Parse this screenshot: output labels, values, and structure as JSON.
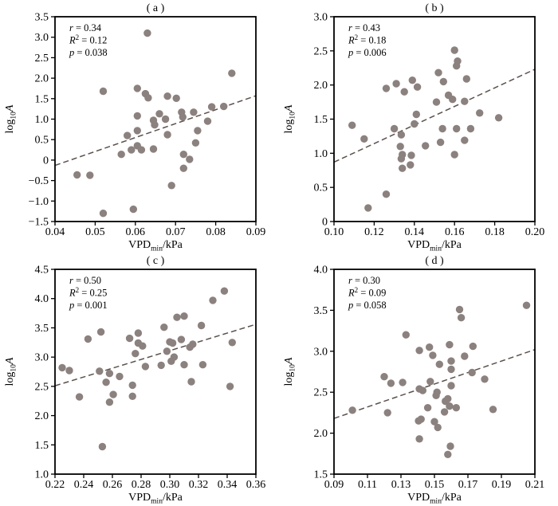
{
  "figure": {
    "background": "#ffffff",
    "point_color": "#8b817f",
    "trend_color": "#5b514d",
    "axis_color": "#000000",
    "text_color": "#000000"
  },
  "chart_data": [
    {
      "type": "scatter",
      "panel": "a",
      "title": "( a )",
      "xlabel": {
        "prefix": "VPD",
        "sub": "min",
        "suffix": "/kPa"
      },
      "ylabel": {
        "prefix": "log",
        "sub": "10",
        "suffix": "A"
      },
      "stats": [
        {
          "sym": "r",
          "sup": "",
          "val": "0.34"
        },
        {
          "sym": "R",
          "sup": "2",
          "val": "0.12"
        },
        {
          "sym": "p",
          "sup": "",
          "val": "0.038"
        }
      ],
      "xlim": [
        0.04,
        0.09
      ],
      "ylim": [
        -1.5,
        3.5
      ],
      "xticks": {
        "values": [
          0.04,
          0.05,
          0.06,
          0.07,
          0.08,
          0.09
        ],
        "labels": [
          "0.04",
          "0.05",
          "0.06",
          "0.07",
          "0.08",
          "0.09"
        ]
      },
      "yticks": {
        "values": [
          3.5,
          3.0,
          2.5,
          2.0,
          1.5,
          1.0,
          0.5,
          0,
          -0.5,
          -1.0,
          -1.5
        ],
        "labels": [
          "3.5",
          "3.0",
          "2.5",
          "2.0",
          "1.5",
          "1.0",
          "0.5",
          "0",
          "−0.5",
          "−1.0",
          "−1.5"
        ]
      },
      "trend": {
        "x1": 0.04,
        "y1": -0.13,
        "x2": 0.09,
        "y2": 1.57
      },
      "points": [
        [
          0.063,
          3.1
        ],
        [
          0.084,
          2.12
        ],
        [
          0.052,
          1.68
        ],
        [
          0.0605,
          1.75
        ],
        [
          0.0625,
          1.62
        ],
        [
          0.0632,
          1.52
        ],
        [
          0.068,
          1.56
        ],
        [
          0.0702,
          1.51
        ],
        [
          0.079,
          1.3
        ],
        [
          0.082,
          1.31
        ],
        [
          0.0715,
          1.17
        ],
        [
          0.0745,
          1.17
        ],
        [
          0.066,
          1.13
        ],
        [
          0.0605,
          1.08
        ],
        [
          0.0675,
          1.0
        ],
        [
          0.0645,
          0.97
        ],
        [
          0.0718,
          1.05
        ],
        [
          0.078,
          0.95
        ],
        [
          0.0648,
          0.86
        ],
        [
          0.068,
          0.62
        ],
        [
          0.0755,
          0.72
        ],
        [
          0.0605,
          0.72
        ],
        [
          0.058,
          0.6
        ],
        [
          0.075,
          0.42
        ],
        [
          0.0605,
          0.35
        ],
        [
          0.0645,
          0.27
        ],
        [
          0.059,
          0.25
        ],
        [
          0.0615,
          0.25
        ],
        [
          0.0565,
          0.14
        ],
        [
          0.072,
          0.14
        ],
        [
          0.0735,
          0.02
        ],
        [
          0.072,
          -0.2
        ],
        [
          0.0455,
          -0.36
        ],
        [
          0.0487,
          -0.37
        ],
        [
          0.069,
          -0.62
        ],
        [
          0.0595,
          -1.2
        ],
        [
          0.052,
          -1.3
        ]
      ]
    },
    {
      "type": "scatter",
      "panel": "b",
      "title": "( b )",
      "xlabel": {
        "prefix": "VPD",
        "sub": "min",
        "suffix": "/kPa"
      },
      "ylabel": {
        "prefix": "log",
        "sub": "10",
        "suffix": "A"
      },
      "stats": [
        {
          "sym": "r",
          "sup": "",
          "val": "0.43"
        },
        {
          "sym": "R",
          "sup": "2",
          "val": "0.18"
        },
        {
          "sym": "p",
          "sup": "",
          "val": "0.006"
        }
      ],
      "xlim": [
        0.1,
        0.2
      ],
      "ylim": [
        0,
        3.0
      ],
      "xticks": {
        "values": [
          0.1,
          0.12,
          0.14,
          0.16,
          0.18,
          0.2
        ],
        "labels": [
          "0.10",
          "0.12",
          "0.14",
          "0.16",
          "0.18",
          "0.20"
        ]
      },
      "yticks": {
        "values": [
          3.0,
          2.5,
          2.0,
          1.5,
          1.0,
          0.5,
          0
        ],
        "labels": [
          "3.0",
          "2.5",
          "2.0",
          "1.5",
          "1.0",
          "0.5",
          "0"
        ]
      },
      "trend": {
        "x1": 0.1,
        "y1": 0.87,
        "x2": 0.2,
        "y2": 2.23
      },
      "points": [
        [
          0.16,
          2.51
        ],
        [
          0.1615,
          2.35
        ],
        [
          0.161,
          2.28
        ],
        [
          0.152,
          2.18
        ],
        [
          0.166,
          2.09
        ],
        [
          0.1545,
          2.05
        ],
        [
          0.139,
          2.07
        ],
        [
          0.131,
          2.02
        ],
        [
          0.126,
          1.95
        ],
        [
          0.1415,
          1.97
        ],
        [
          0.135,
          1.9
        ],
        [
          0.157,
          1.85
        ],
        [
          0.159,
          1.79
        ],
        [
          0.165,
          1.76
        ],
        [
          0.151,
          1.75
        ],
        [
          0.1725,
          1.59
        ],
        [
          0.141,
          1.57
        ],
        [
          0.182,
          1.52
        ],
        [
          0.14,
          1.43
        ],
        [
          0.109,
          1.41
        ],
        [
          0.13,
          1.36
        ],
        [
          0.154,
          1.36
        ],
        [
          0.161,
          1.36
        ],
        [
          0.168,
          1.36
        ],
        [
          0.1335,
          1.27
        ],
        [
          0.115,
          1.21
        ],
        [
          0.165,
          1.19
        ],
        [
          0.153,
          1.16
        ],
        [
          0.1455,
          1.11
        ],
        [
          0.133,
          1.1
        ],
        [
          0.134,
          0.98
        ],
        [
          0.1385,
          0.97
        ],
        [
          0.16,
          0.98
        ],
        [
          0.1335,
          0.92
        ],
        [
          0.138,
          0.83
        ],
        [
          0.134,
          0.78
        ],
        [
          0.126,
          0.4
        ],
        [
          0.117,
          0.2
        ]
      ]
    },
    {
      "type": "scatter",
      "panel": "c",
      "title": "( c )",
      "xlabel": {
        "prefix": "VPD",
        "sub": "min",
        "suffix": "/kPa"
      },
      "ylabel": {
        "prefix": "log",
        "sub": "10",
        "suffix": "A"
      },
      "stats": [
        {
          "sym": "r",
          "sup": "",
          "val": "0.50"
        },
        {
          "sym": "R",
          "sup": "2",
          "val": "0.25"
        },
        {
          "sym": "p",
          "sup": "",
          "val": "0.001"
        }
      ],
      "xlim": [
        0.22,
        0.36
      ],
      "ylim": [
        1.0,
        4.5
      ],
      "xticks": {
        "values": [
          0.22,
          0.24,
          0.26,
          0.28,
          0.3,
          0.32,
          0.34,
          0.36
        ],
        "labels": [
          "0.22",
          "0.24",
          "0.26",
          "0.28",
          "0.30",
          "0.32",
          "0.34",
          "0.36"
        ]
      },
      "yticks": {
        "values": [
          4.5,
          4.0,
          3.5,
          3.0,
          2.5,
          2.0,
          1.5,
          1.0
        ],
        "labels": [
          "4.5",
          "4.0",
          "3.5",
          "3.0",
          "2.5",
          "2.0",
          "1.5",
          "1.0"
        ]
      },
      "trend": {
        "x1": 0.22,
        "y1": 2.51,
        "x2": 0.36,
        "y2": 3.56
      },
      "points": [
        [
          0.225,
          2.82
        ],
        [
          0.23,
          2.77
        ],
        [
          0.237,
          2.32
        ],
        [
          0.243,
          3.31
        ],
        [
          0.252,
          3.43
        ],
        [
          0.251,
          2.76
        ],
        [
          0.258,
          2.72
        ],
        [
          0.253,
          1.47
        ],
        [
          0.2556,
          2.57
        ],
        [
          0.258,
          2.23
        ],
        [
          0.265,
          2.67
        ],
        [
          0.2606,
          2.36
        ],
        [
          0.274,
          2.52
        ],
        [
          0.272,
          3.32
        ],
        [
          0.276,
          3.06
        ],
        [
          0.278,
          3.41
        ],
        [
          0.278,
          3.24
        ],
        [
          0.274,
          2.33
        ],
        [
          0.281,
          3.19
        ],
        [
          0.283,
          2.84
        ],
        [
          0.294,
          2.86
        ],
        [
          0.296,
          3.51
        ],
        [
          0.298,
          3.1
        ],
        [
          0.3,
          3.26
        ],
        [
          0.302,
          3.24
        ],
        [
          0.301,
          2.93
        ],
        [
          0.303,
          3.0
        ],
        [
          0.305,
          3.68
        ],
        [
          0.308,
          3.3
        ],
        [
          0.31,
          3.7
        ],
        [
          0.31,
          2.87
        ],
        [
          0.314,
          3.17
        ],
        [
          0.315,
          2.58
        ],
        [
          0.316,
          3.22
        ],
        [
          0.322,
          3.54
        ],
        [
          0.323,
          2.87
        ],
        [
          0.33,
          3.97
        ],
        [
          0.338,
          4.13
        ],
        [
          0.3435,
          3.25
        ],
        [
          0.342,
          2.5
        ]
      ]
    },
    {
      "type": "scatter",
      "panel": "d",
      "title": "( d )",
      "xlabel": {
        "prefix": "VPD",
        "sub": "min",
        "suffix": "/kPa"
      },
      "ylabel": {
        "prefix": "log",
        "sub": "10",
        "suffix": "A"
      },
      "stats": [
        {
          "sym": "r",
          "sup": "",
          "val": "0.30"
        },
        {
          "sym": "R",
          "sup": "2",
          "val": "0.09"
        },
        {
          "sym": "p",
          "sup": "",
          "val": "0.058"
        }
      ],
      "xlim": [
        0.09,
        0.21
      ],
      "ylim": [
        1.5,
        4.0
      ],
      "xticks": {
        "values": [
          0.09,
          0.11,
          0.13,
          0.15,
          0.17,
          0.19,
          0.21
        ],
        "labels": [
          "0.09",
          "0.11",
          "0.13",
          "0.15",
          "0.17",
          "0.19",
          "0.21"
        ]
      },
      "yticks": {
        "values": [
          4.0,
          3.5,
          3.0,
          2.5,
          2.0,
          1.5
        ],
        "labels": [
          "4.0",
          "3.5",
          "3.0",
          "2.5",
          "2.0",
          "1.5"
        ]
      },
      "trend": {
        "x1": 0.09,
        "y1": 2.18,
        "x2": 0.21,
        "y2": 3.02
      },
      "points": [
        [
          0.205,
          3.56
        ],
        [
          0.165,
          3.51
        ],
        [
          0.166,
          3.41
        ],
        [
          0.133,
          3.2
        ],
        [
          0.159,
          3.08
        ],
        [
          0.173,
          3.06
        ],
        [
          0.147,
          3.05
        ],
        [
          0.141,
          3.01
        ],
        [
          0.149,
          2.95
        ],
        [
          0.168,
          2.94
        ],
        [
          0.16,
          2.88
        ],
        [
          0.153,
          2.84
        ],
        [
          0.16,
          2.78
        ],
        [
          0.1725,
          2.74
        ],
        [
          0.12,
          2.69
        ],
        [
          0.18,
          2.66
        ],
        [
          0.131,
          2.62
        ],
        [
          0.124,
          2.61
        ],
        [
          0.1475,
          2.63
        ],
        [
          0.16,
          2.58
        ],
        [
          0.141,
          2.54
        ],
        [
          0.143,
          2.52
        ],
        [
          0.1515,
          2.5
        ],
        [
          0.151,
          2.46
        ],
        [
          0.158,
          2.42
        ],
        [
          0.1565,
          2.39
        ],
        [
          0.159,
          2.33
        ],
        [
          0.146,
          2.31
        ],
        [
          0.163,
          2.31
        ],
        [
          0.156,
          2.26
        ],
        [
          0.185,
          2.29
        ],
        [
          0.101,
          2.28
        ],
        [
          0.122,
          2.25
        ],
        [
          0.142,
          2.17
        ],
        [
          0.1405,
          2.15
        ],
        [
          0.15,
          2.14
        ],
        [
          0.152,
          2.07
        ],
        [
          0.141,
          1.93
        ],
        [
          0.1595,
          1.84
        ],
        [
          0.158,
          1.74
        ]
      ]
    }
  ]
}
